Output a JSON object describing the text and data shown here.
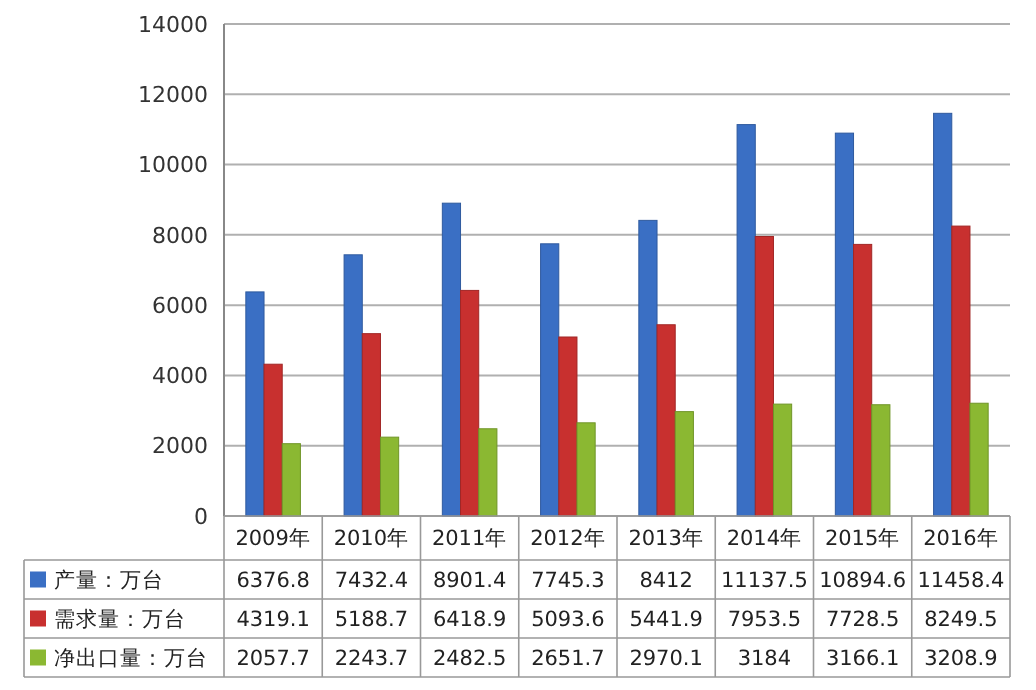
{
  "chart_data": {
    "type": "bar",
    "categories": [
      "2009年",
      "2010年",
      "2011年",
      "2012年",
      "2013年",
      "2014年",
      "2015年",
      "2016年"
    ],
    "series": [
      {
        "name": "产量：万台",
        "color": "#3a6fc4",
        "values": [
          6376.8,
          7432.4,
          8901.4,
          7745.3,
          8412,
          11137.5,
          10894.6,
          11458.4
        ]
      },
      {
        "name": "需求量：万台",
        "color": "#c8302f",
        "values": [
          4319.1,
          5188.7,
          6418.9,
          5093.6,
          5441.9,
          7953.5,
          7728.5,
          8249.5
        ]
      },
      {
        "name": "净出口量：万台",
        "color": "#8bb832",
        "values": [
          2057.7,
          2243.7,
          2482.5,
          2651.7,
          2970.1,
          3184,
          3166.1,
          3208.9
        ]
      }
    ],
    "ylim": [
      0,
      14000
    ],
    "yticks": [
      0,
      2000,
      4000,
      6000,
      8000,
      10000,
      12000,
      14000
    ],
    "grid": "y",
    "legend": "bottom",
    "data_labels": true
  }
}
